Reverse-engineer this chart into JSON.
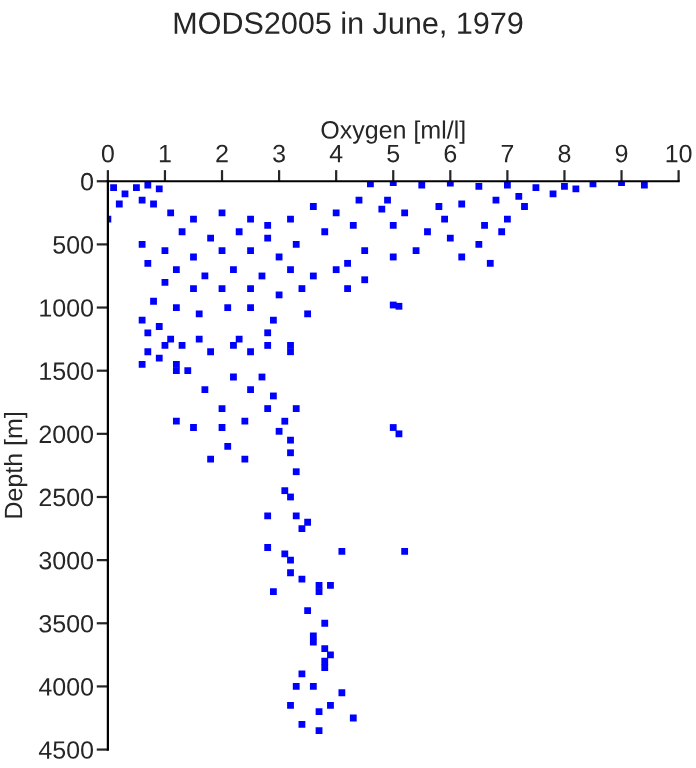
{
  "chart_data": {
    "type": "scatter",
    "title": "MODS2005 in June, 1979",
    "xlabel": "Oxygen [ml/l]",
    "ylabel": "Depth [m]",
    "xlim": [
      0,
      10
    ],
    "xticks": [
      0,
      1,
      2,
      3,
      4,
      5,
      6,
      7,
      8,
      9,
      10
    ],
    "ylim": [
      4500,
      0
    ],
    "yticks": [
      0,
      500,
      1000,
      1500,
      2000,
      2500,
      3000,
      3500,
      4000,
      4500
    ],
    "grid": false,
    "marker": "square",
    "series": [
      {
        "color": "#0000ff",
        "x": [
          4.6,
          5,
          5.5,
          6,
          6.5,
          7,
          7.5,
          8,
          8.5,
          9,
          9.4,
          8.2,
          7.8,
          7.2,
          6.8,
          6.2,
          5.8,
          5.2,
          4.8,
          4.4,
          4,
          3.6,
          3.2,
          2.8,
          5,
          5.6,
          6,
          6.5,
          6.2,
          5.4,
          5,
          4.5,
          4.2,
          4,
          3.6,
          3.4,
          6.6,
          7,
          7.3,
          6.9,
          5.9,
          4.9,
          4.3,
          3.8,
          3.3,
          6.7,
          0.1,
          0.3,
          0.5,
          0.7,
          0.9,
          0.2,
          0.6,
          0.8,
          0,
          1.1,
          1.5,
          2,
          2.5,
          1.3,
          1.8,
          2.3,
          2.8,
          0.6,
          1,
          1.5,
          2,
          2.5,
          3,
          0.7,
          1.2,
          1.7,
          2.2,
          2.7,
          3.2,
          1,
          1.5,
          2,
          2.5,
          3,
          0.8,
          1.2,
          1.6,
          2.1,
          2.5,
          2.9,
          3.5,
          3.2,
          2.8,
          2.3,
          5,
          5.1,
          4.2,
          4.5,
          0.6,
          0.7,
          0.9,
          1.1,
          0.7,
          0.9,
          0.6,
          1.0,
          1.3,
          1.6,
          1.2,
          1.8,
          2.5,
          3.2,
          1.2,
          2.2,
          2.8,
          1.4,
          2.2,
          2.7,
          2.5,
          1.7,
          2.9,
          2,
          2.8,
          3.3,
          3.1,
          2.4,
          1.5,
          2,
          1.2,
          3,
          3.2,
          2.1,
          1.8,
          2.4,
          3.2,
          3.3,
          3.1,
          3.2,
          2.8,
          3.3,
          3.5,
          3.4,
          2.8,
          3.1,
          3.2,
          3.2,
          3.7,
          3.9,
          3.4,
          2.9,
          3.7,
          3.5,
          3.8,
          3.6,
          3.6,
          3.8,
          3.9,
          3.8,
          3.8,
          3.4,
          3.3,
          3.6,
          4.1,
          3.2,
          3.9,
          3.7,
          4.3,
          3.4,
          3.7,
          5,
          5.1,
          5.2,
          4.1
        ],
        "values": [
          20,
          10,
          30,
          15,
          40,
          30,
          50,
          40,
          20,
          10,
          30,
          60,
          100,
          120,
          150,
          180,
          200,
          250,
          220,
          150,
          250,
          200,
          300,
          350,
          350,
          400,
          450,
          500,
          600,
          550,
          600,
          550,
          650,
          700,
          750,
          850,
          350,
          300,
          200,
          400,
          300,
          150,
          350,
          400,
          500,
          650,
          50,
          100,
          50,
          30,
          60,
          180,
          150,
          180,
          300,
          250,
          300,
          250,
          300,
          400,
          450,
          400,
          450,
          500,
          550,
          600,
          550,
          550,
          600,
          650,
          700,
          750,
          700,
          750,
          700,
          800,
          850,
          850,
          850,
          900,
          950,
          1000,
          1050,
          1000,
          1000,
          1100,
          1050,
          1300,
          1200,
          1250,
          980,
          990,
          850,
          780,
          1100,
          1200,
          1150,
          1250,
          1350,
          1400,
          1450,
          1300,
          1300,
          1250,
          1450,
          1350,
          1350,
          1350,
          1500,
          1300,
          1300,
          1500,
          1550,
          1550,
          1650,
          1650,
          1700,
          1800,
          1800,
          1800,
          1900,
          1900,
          1950,
          1950,
          1900,
          1980,
          2050,
          2100,
          2200,
          2200,
          2150,
          2300,
          2450,
          2500,
          2650,
          2650,
          2700,
          2750,
          2900,
          2950,
          3000,
          3100,
          3200,
          3200,
          3150,
          3250,
          3250,
          3400,
          3500,
          3600,
          3650,
          3700,
          3750,
          3800,
          3850,
          3900,
          4000,
          4000,
          4050,
          4150,
          4150,
          4200,
          4250,
          4300,
          4350,
          1950,
          2000,
          2930,
          2930
        ]
      }
    ]
  }
}
